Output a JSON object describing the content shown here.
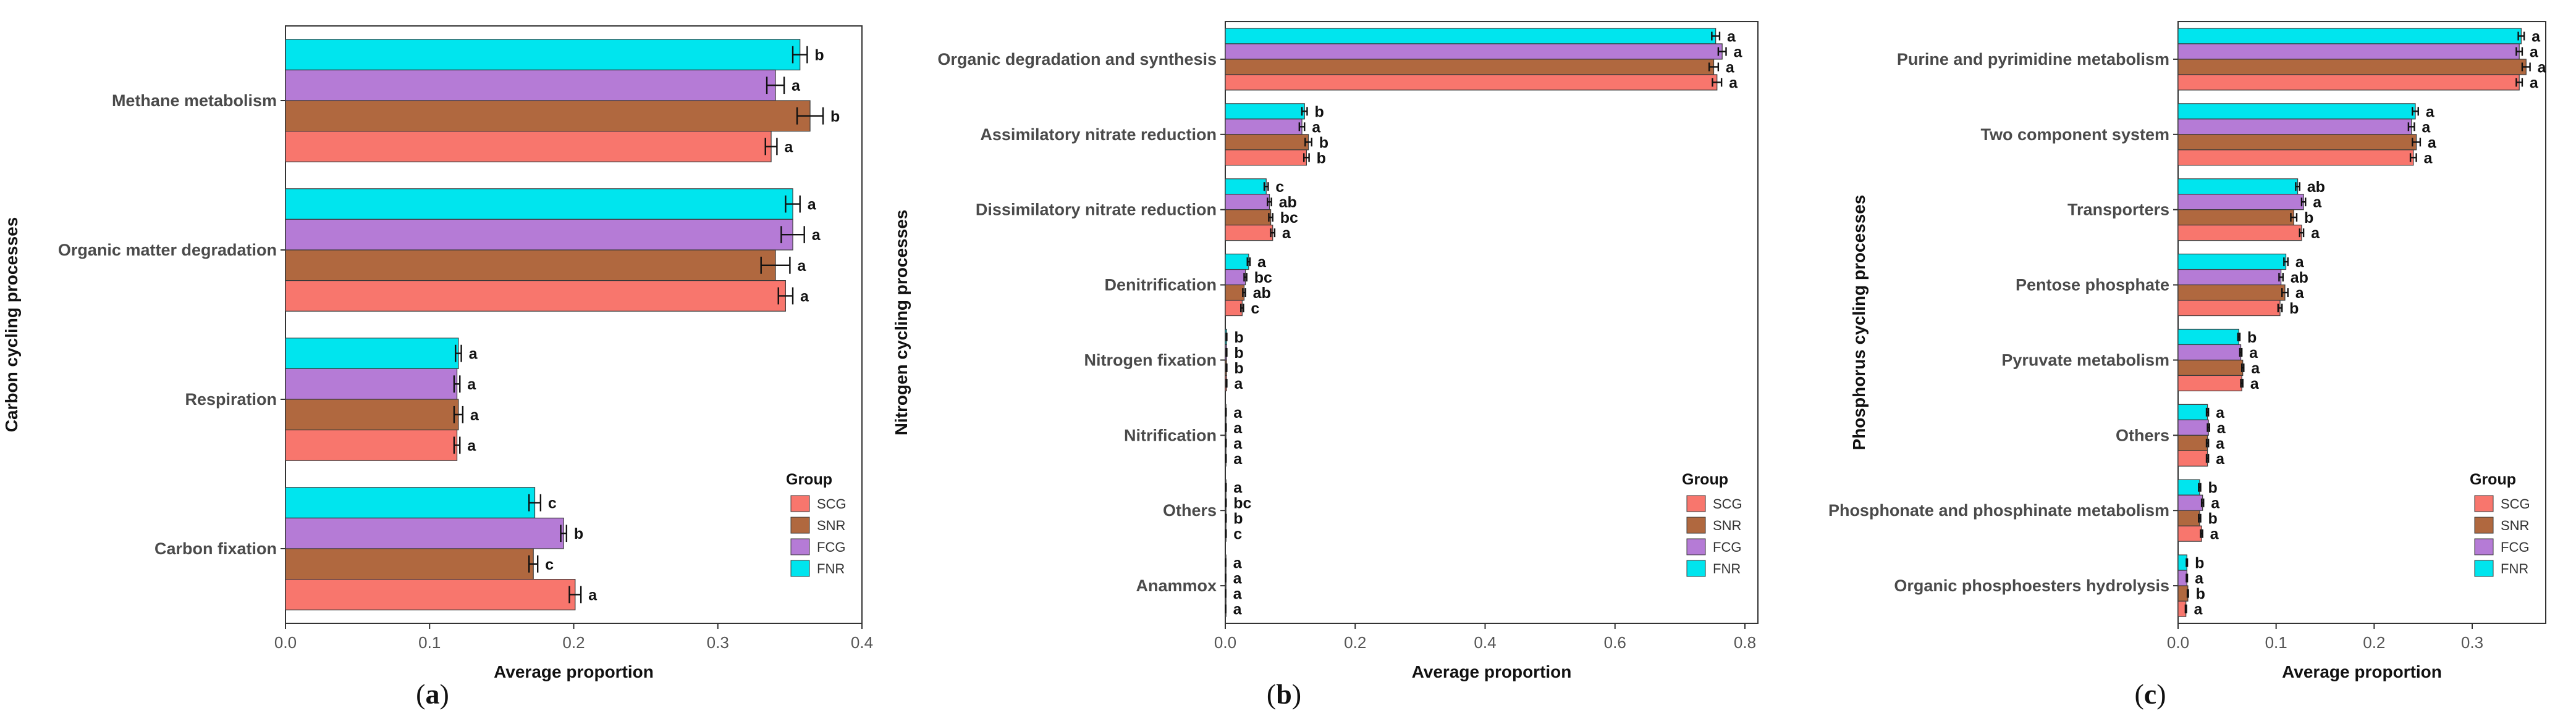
{
  "colors": {
    "SCG": "#F8766D",
    "SNR": "#B0683F",
    "FCG": "#B57BD6",
    "FNR": "#00E5EE"
  },
  "chart_data": [
    {
      "type": "bar",
      "orientation": "horizontal",
      "panel_label": "a",
      "xlabel": "Average proportion",
      "ylabel": "Carbon cycling processes",
      "xlim": [
        0,
        0.4
      ],
      "xticks": [
        "0.0",
        "0.1",
        "0.2",
        "0.3",
        "0.4"
      ],
      "xtick_values": [
        0,
        0.1,
        0.2,
        0.3,
        0.4
      ],
      "legend_title": "Group",
      "legend_position": "bottom-right",
      "groups": [
        "SCG",
        "SNR",
        "FCG",
        "FNR"
      ],
      "categories": [
        "Methane metabolism",
        "Organic matter degradation",
        "Respiration",
        "Carbon fixation"
      ],
      "series": [
        {
          "name": "FNR",
          "values": [
            0.357,
            0.352,
            0.12,
            0.173
          ],
          "errors": [
            0.005,
            0.005,
            0.002,
            0.004
          ],
          "sig": [
            "b",
            "a",
            "a",
            "c"
          ]
        },
        {
          "name": "FCG",
          "values": [
            0.34,
            0.352,
            0.119,
            0.193
          ],
          "errors": [
            0.006,
            0.008,
            0.002,
            0.002
          ],
          "sig": [
            "a",
            "a",
            "a",
            "b"
          ]
        },
        {
          "name": "SNR",
          "values": [
            0.364,
            0.34,
            0.12,
            0.172
          ],
          "errors": [
            0.009,
            0.01,
            0.003,
            0.003
          ],
          "sig": [
            "b",
            "a",
            "a",
            "c"
          ]
        },
        {
          "name": "SCG",
          "values": [
            0.337,
            0.347,
            0.119,
            0.201
          ],
          "errors": [
            0.004,
            0.005,
            0.002,
            0.004
          ],
          "sig": [
            "a",
            "a",
            "a",
            "a"
          ]
        }
      ]
    },
    {
      "type": "bar",
      "orientation": "horizontal",
      "panel_label": "b",
      "xlabel": "Average proportion",
      "ylabel": "Nitrogen cycling processes",
      "xlim": [
        0,
        0.82
      ],
      "xticks": [
        "0.0",
        "0.2",
        "0.4",
        "0.6",
        "0.8"
      ],
      "xtick_values": [
        0,
        0.2,
        0.4,
        0.6,
        0.8
      ],
      "legend_title": "Group",
      "legend_position": "bottom-right",
      "groups": [
        "SCG",
        "SNR",
        "FCG",
        "FNR"
      ],
      "categories": [
        "Organic degradation and synthesis",
        "Assimilatory nitrate reduction",
        "Dissimilatory nitrate reduction",
        "Denitrification",
        "Nitrogen fixation",
        "Nitrification",
        "Others",
        "Anammox"
      ],
      "series": [
        {
          "name": "FNR",
          "values": [
            0.755,
            0.122,
            0.063,
            0.036,
            0.002,
            0.001,
            0.001,
            0.0005
          ],
          "errors": [
            0.006,
            0.004,
            0.003,
            0.002,
            0.0003,
            0.0002,
            0.0002,
            0.0001
          ],
          "sig": [
            "a",
            "b",
            "c",
            "a",
            "b",
            "a",
            "a",
            "a"
          ]
        },
        {
          "name": "FCG",
          "values": [
            0.765,
            0.118,
            0.068,
            0.031,
            0.002,
            0.001,
            0.001,
            0.0005
          ],
          "errors": [
            0.006,
            0.004,
            0.003,
            0.002,
            0.0003,
            0.0002,
            0.0002,
            0.0001
          ],
          "sig": [
            "a",
            "a",
            "ab",
            "bc",
            "b",
            "a",
            "bc",
            "a"
          ]
        },
        {
          "name": "SNR",
          "values": [
            0.752,
            0.128,
            0.07,
            0.029,
            0.002,
            0.001,
            0.001,
            0.0005
          ],
          "errors": [
            0.007,
            0.005,
            0.003,
            0.002,
            0.0003,
            0.0002,
            0.0002,
            0.0001
          ],
          "sig": [
            "a",
            "b",
            "bc",
            "ab",
            "b",
            "a",
            "b",
            "a"
          ]
        },
        {
          "name": "SCG",
          "values": [
            0.757,
            0.125,
            0.073,
            0.026,
            0.002,
            0.001,
            0.001,
            0.0005
          ],
          "errors": [
            0.007,
            0.004,
            0.003,
            0.002,
            0.0003,
            0.0002,
            0.0002,
            0.0001
          ],
          "sig": [
            "a",
            "b",
            "a",
            "c",
            "a",
            "a",
            "c",
            "a"
          ]
        }
      ]
    },
    {
      "type": "bar",
      "orientation": "horizontal",
      "panel_label": "c",
      "xlabel": "Average proportion",
      "ylabel": "Phosphorus cycling processes",
      "xlim": [
        0,
        0.375
      ],
      "xticks": [
        "0.0",
        "0.1",
        "0.2",
        "0.3"
      ],
      "xtick_values": [
        0,
        0.1,
        0.2,
        0.3
      ],
      "legend_title": "Group",
      "legend_position": "bottom-right",
      "groups": [
        "SCG",
        "SNR",
        "FCG",
        "FNR"
      ],
      "categories": [
        "Purine and pyrimidine metabolism",
        "Two component system",
        "Transporters",
        "Pentose phosphate",
        "Pyruvate metabolism",
        "Others",
        "Phosphonate and phosphinate metabolism",
        "Organic phosphoesters hydrolysis"
      ],
      "series": [
        {
          "name": "FNR",
          "values": [
            0.35,
            0.242,
            0.122,
            0.11,
            0.062,
            0.03,
            0.022,
            0.009
          ],
          "errors": [
            0.003,
            0.003,
            0.002,
            0.002,
            0.001,
            0.001,
            0.001,
            0.0005
          ],
          "sig": [
            "a",
            "a",
            "ab",
            "a",
            "b",
            "a",
            "b",
            "b"
          ]
        },
        {
          "name": "FCG",
          "values": [
            0.348,
            0.238,
            0.128,
            0.105,
            0.064,
            0.031,
            0.025,
            0.009
          ],
          "errors": [
            0.003,
            0.003,
            0.002,
            0.002,
            0.001,
            0.001,
            0.001,
            0.0005
          ],
          "sig": [
            "a",
            "a",
            "a",
            "ab",
            "a",
            "a",
            "a",
            "a"
          ]
        },
        {
          "name": "SNR",
          "values": [
            0.355,
            0.243,
            0.118,
            0.109,
            0.066,
            0.03,
            0.022,
            0.01
          ],
          "errors": [
            0.004,
            0.004,
            0.003,
            0.003,
            0.001,
            0.001,
            0.001,
            0.0005
          ],
          "sig": [
            "a",
            "a",
            "b",
            "a",
            "a",
            "a",
            "b",
            "b"
          ]
        },
        {
          "name": "SCG",
          "values": [
            0.348,
            0.24,
            0.126,
            0.104,
            0.065,
            0.03,
            0.024,
            0.008
          ],
          "errors": [
            0.003,
            0.003,
            0.002,
            0.002,
            0.001,
            0.001,
            0.001,
            0.0005
          ],
          "sig": [
            "a",
            "a",
            "a",
            "b",
            "a",
            "a",
            "a",
            "a"
          ]
        }
      ]
    }
  ]
}
